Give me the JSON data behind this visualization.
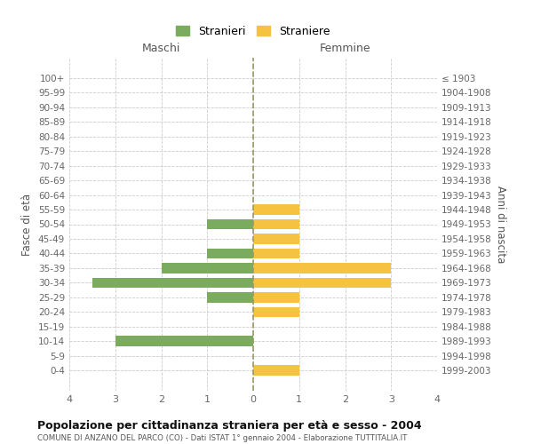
{
  "age_groups": [
    "0-4",
    "5-9",
    "10-14",
    "15-19",
    "20-24",
    "25-29",
    "30-34",
    "35-39",
    "40-44",
    "45-49",
    "50-54",
    "55-59",
    "60-64",
    "65-69",
    "70-74",
    "75-79",
    "80-84",
    "85-89",
    "90-94",
    "95-99",
    "100+"
  ],
  "birth_years": [
    "1999-2003",
    "1994-1998",
    "1989-1993",
    "1984-1988",
    "1979-1983",
    "1974-1978",
    "1969-1973",
    "1964-1968",
    "1959-1963",
    "1954-1958",
    "1949-1953",
    "1944-1948",
    "1939-1943",
    "1934-1938",
    "1929-1933",
    "1924-1928",
    "1919-1923",
    "1914-1918",
    "1909-1913",
    "1904-1908",
    "≤ 1903"
  ],
  "maschi": [
    0,
    0,
    3,
    0,
    0,
    1,
    3.5,
    2,
    1,
    0,
    1,
    0,
    0,
    0,
    0,
    0,
    0,
    0,
    0,
    0,
    0
  ],
  "femmine": [
    1,
    0,
    0,
    0,
    1,
    1,
    3,
    3,
    1,
    1,
    1,
    1,
    0,
    0,
    0,
    0,
    0,
    0,
    0,
    0,
    0
  ],
  "color_maschi": "#7aab5e",
  "color_femmine": "#f5c242",
  "title": "Popolazione per cittadinanza straniera per età e sesso - 2004",
  "subtitle": "COMUNE DI ANZANO DEL PARCO (CO) - Dati ISTAT 1° gennaio 2004 - Elaborazione TUTTITALIA.IT",
  "legend_maschi": "Stranieri",
  "legend_femmine": "Straniere",
  "xlabel_maschi": "Maschi",
  "xlabel_femmine": "Femmine",
  "ylabel_left": "Fasce di età",
  "ylabel_right": "Anni di nascita",
  "xlim": 4,
  "background_color": "#ffffff",
  "grid_color": "#cccccc"
}
